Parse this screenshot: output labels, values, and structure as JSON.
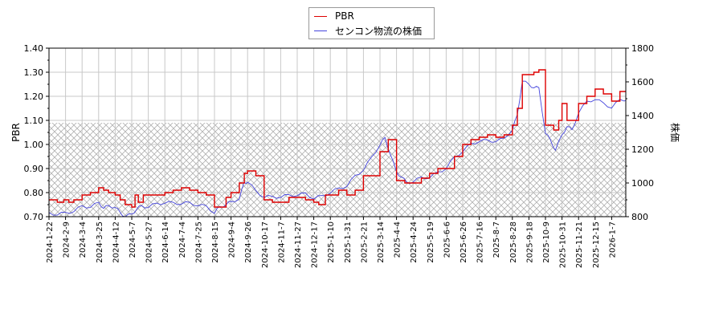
{
  "chart_data": {
    "type": "line",
    "title": "",
    "legend": {
      "position": "top-center",
      "entries": [
        {
          "label": "PBR",
          "color": "#dd0000"
        },
        {
          "label": "センコン物流の株価",
          "color": "#4444dd"
        }
      ]
    },
    "xlabel": "",
    "ylabel_left": "PBR",
    "ylabel_right": "株価",
    "ylim_left": [
      0.7,
      1.4
    ],
    "ylim_right": [
      800,
      1800
    ],
    "yticks_left": [
      "0.70",
      "0.80",
      "0.90",
      "1.00",
      "1.10",
      "1.20",
      "1.30",
      "1.40"
    ],
    "yticks_right": [
      "800",
      "1000",
      "1200",
      "1400",
      "1600",
      "1800"
    ],
    "xticks": [
      "2024-1-22",
      "2024-2-9",
      "2024-3-4",
      "2024-3-25",
      "2024-4-12",
      "2024-5-7",
      "2024-5-27",
      "2024-6-14",
      "2024-7-4",
      "2024-7-25",
      "2024-8-15",
      "2024-9-4",
      "2024-9-26",
      "2024-10-17",
      "2024-11-7",
      "2024-11-27",
      "2024-12-17",
      "2025-1-10",
      "2025-1-31",
      "2025-2-21",
      "2025-3-14",
      "2025-4-4",
      "2025-4-24",
      "2025-5-19",
      "2025-6-6",
      "2025-6-26",
      "2025-7-16",
      "2025-8-7",
      "2025-8-28",
      "2025-9-18",
      "2025-10-9",
      "2025-10-31",
      "2025-11-21",
      "2025-12-15",
      "2026-1-7"
    ],
    "grid": true,
    "hatched_band_left": [
      0.7,
      1.09
    ],
    "series": [
      {
        "name": "PBR",
        "axis": "left",
        "color": "#dd0000",
        "x_index": [
          0,
          0.5,
          0.9,
          1.2,
          1.5,
          2.0,
          2.5,
          3.0,
          3.3,
          3.6,
          4.0,
          4.3,
          4.6,
          5.0,
          5.2,
          5.4,
          5.5,
          5.7,
          6.0,
          6.5,
          7.0,
          7.5,
          8.0,
          8.5,
          9.0,
          9.5,
          10.0,
          10.3,
          10.7,
          11.0,
          11.5,
          11.8,
          12.0,
          12.5,
          13.0,
          13.5,
          14.0,
          14.5,
          15.0,
          15.5,
          16.0,
          16.3,
          16.7,
          17.0,
          17.5,
          18.0,
          18.5,
          19.0,
          19.5,
          20.0,
          20.5,
          21.0,
          21.5,
          22.0,
          22.5,
          23.0,
          23.5,
          24.0,
          24.5,
          25.0,
          25.5,
          26.0,
          26.5,
          27.0,
          27.5,
          28.0,
          28.3,
          28.6,
          29.0,
          29.3,
          29.6,
          30.0,
          30.5,
          30.8,
          31.0,
          31.3,
          31.6,
          32.0,
          32.5,
          33.0,
          33.5,
          34.0,
          34.5,
          35.0
        ],
        "values": [
          0.77,
          0.76,
          0.77,
          0.76,
          0.77,
          0.79,
          0.8,
          0.82,
          0.81,
          0.8,
          0.79,
          0.77,
          0.75,
          0.74,
          0.79,
          0.76,
          0.76,
          0.79,
          0.79,
          0.79,
          0.8,
          0.81,
          0.82,
          0.81,
          0.8,
          0.79,
          0.74,
          0.74,
          0.78,
          0.8,
          0.84,
          0.88,
          0.89,
          0.87,
          0.77,
          0.76,
          0.76,
          0.78,
          0.78,
          0.77,
          0.76,
          0.75,
          0.79,
          0.79,
          0.81,
          0.79,
          0.81,
          0.87,
          0.87,
          0.97,
          1.02,
          0.85,
          0.84,
          0.84,
          0.86,
          0.88,
          0.9,
          0.9,
          0.95,
          1.0,
          1.02,
          1.03,
          1.04,
          1.03,
          1.04,
          1.08,
          1.15,
          1.29,
          1.29,
          1.3,
          1.31,
          1.08,
          1.06,
          1.1,
          1.17,
          1.1,
          1.1,
          1.17,
          1.2,
          1.23,
          1.21,
          1.18,
          1.22,
          1.23
        ]
      },
      {
        "name": "センコン物流の株価",
        "axis": "right",
        "color": "#4444dd",
        "x_index": [
          0,
          0.5,
          1.0,
          1.5,
          2.0,
          2.5,
          3.0,
          3.3,
          3.6,
          4.0,
          4.3,
          4.6,
          5.0,
          5.3,
          5.6,
          6.0,
          6.5,
          7.0,
          7.5,
          8.0,
          8.5,
          9.0,
          9.5,
          10.0,
          10.3,
          10.7,
          11.0,
          11.5,
          11.8,
          12.0,
          12.5,
          13.0,
          13.5,
          14.0,
          14.5,
          15.0,
          15.5,
          16.0,
          16.5,
          17.0,
          17.5,
          18.0,
          18.5,
          19.0,
          19.5,
          20.0,
          20.3,
          20.6,
          21.0,
          21.3,
          21.6,
          22.0,
          22.5,
          23.0,
          23.5,
          24.0,
          24.5,
          25.0,
          25.5,
          26.0,
          26.5,
          27.0,
          27.5,
          28.0,
          28.3,
          28.6,
          29.0,
          29.3,
          29.6,
          30.0,
          30.3,
          30.6,
          31.0,
          31.3,
          31.6,
          32.0,
          32.5,
          33.0,
          33.5,
          34.0,
          34.5,
          35.0
        ],
        "values": [
          820,
          815,
          820,
          835,
          860,
          860,
          880,
          855,
          860,
          860,
          820,
          805,
          810,
          850,
          860,
          860,
          875,
          885,
          880,
          880,
          880,
          870,
          860,
          825,
          855,
          875,
          885,
          910,
          1000,
          1010,
          950,
          920,
          915,
          920,
          925,
          930,
          935,
          910,
          920,
          945,
          965,
          985,
          1040,
          1080,
          1150,
          1230,
          1265,
          1180,
          1060,
          1040,
          1000,
          1010,
          1030,
          1035,
          1060,
          1090,
          1150,
          1190,
          1230,
          1250,
          1250,
          1250,
          1260,
          1320,
          1400,
          1610,
          1580,
          1570,
          1560,
          1300,
          1250,
          1200,
          1280,
          1340,
          1310,
          1420,
          1480,
          1500,
          1470,
          1450,
          1490,
          1500
        ]
      }
    ]
  }
}
